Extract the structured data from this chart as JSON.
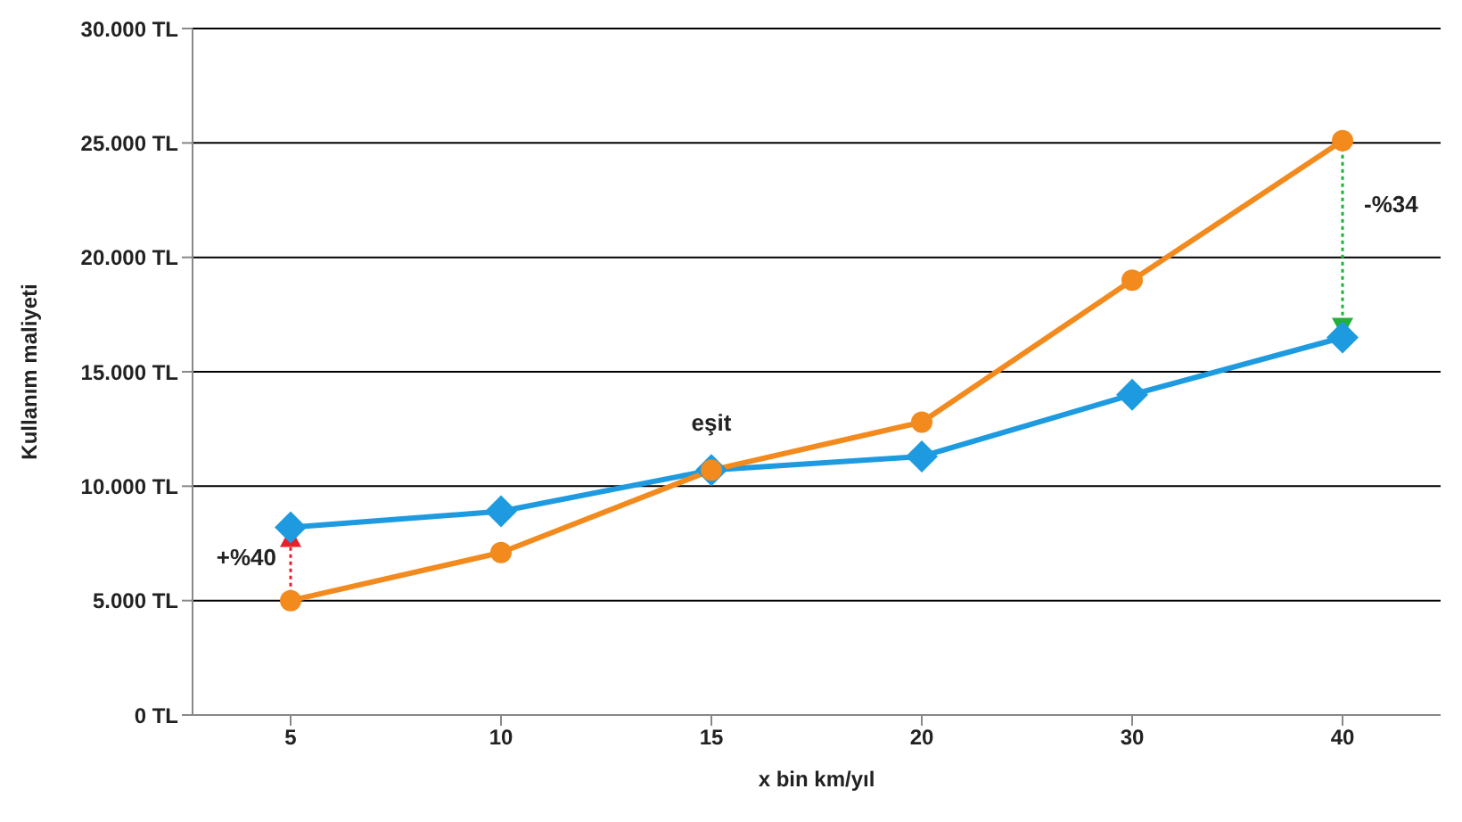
{
  "chart_data": {
    "type": "line",
    "xlabel": "x bin km/yıl",
    "ylabel": "Kullanım maliyeti",
    "categories": [
      "5",
      "10",
      "15",
      "20",
      "30",
      "40"
    ],
    "series": [
      {
        "color": "#1e9be0",
        "marker": "diamond",
        "values": [
          8200,
          8900,
          10700,
          11300,
          14000,
          16500
        ]
      },
      {
        "color": "#f28a1e",
        "marker": "circle",
        "values": [
          5000,
          7100,
          10700,
          12800,
          19000,
          25100
        ]
      }
    ],
    "ylim": [
      0,
      30000
    ],
    "yticks": [
      {
        "value": 0,
        "label": "0 TL"
      },
      {
        "value": 5000,
        "label": "5.000 TL"
      },
      {
        "value": 10000,
        "label": "10.000 TL"
      },
      {
        "value": 15000,
        "label": "15.000 TL"
      },
      {
        "value": 20000,
        "label": "20.000 TL"
      },
      {
        "value": 25000,
        "label": "25.000 TL"
      },
      {
        "value": 30000,
        "label": "30.000 TL"
      }
    ],
    "grid": "y",
    "legend": false,
    "annotations": [
      {
        "text": "+%40",
        "x": "5",
        "y": 5000
      },
      {
        "text": "eşit",
        "x": "15",
        "y": 10700
      },
      {
        "text": "-%34",
        "x": "40",
        "y": 25100
      }
    ]
  }
}
